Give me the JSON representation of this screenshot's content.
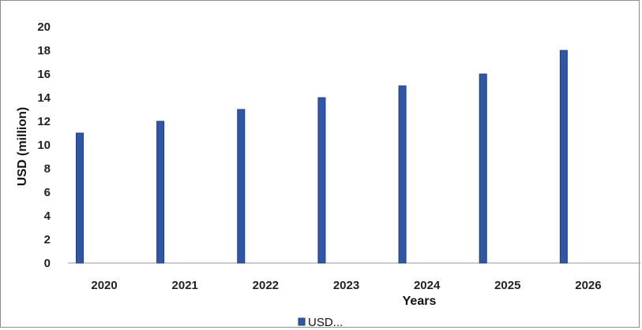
{
  "chart_data": {
    "type": "bar",
    "categories": [
      "2020",
      "2021",
      "2022",
      "2023",
      "2024",
      "2025",
      "2026"
    ],
    "series": [
      {
        "name": "USD...",
        "values": [
          11,
          12,
          13,
          14,
          15,
          16,
          18
        ]
      }
    ],
    "title": "",
    "xlabel": "Years",
    "ylabel": "USD (million)",
    "ylim": [
      0,
      20
    ],
    "yticks": [
      "0",
      "2",
      "4",
      "6",
      "8",
      "10",
      "12",
      "14",
      "16",
      "18",
      "20"
    ],
    "grid": false,
    "legend_position": "bottom",
    "colors": {
      "bar": "#2f57a8",
      "bar_edge": "#1f3d7a",
      "axis": "#9a9a9a"
    }
  }
}
